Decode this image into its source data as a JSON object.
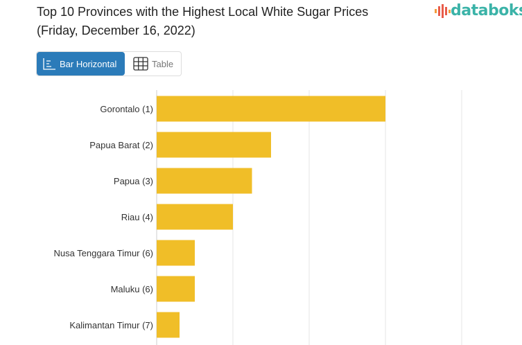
{
  "title_line1": "Top 10 Provinces with the Highest Local White Sugar Prices",
  "title_line2": "(Friday, December 16, 2022)",
  "logo": "databoks",
  "tabs": [
    {
      "label": "Bar Horizontal",
      "icon": "bar-chart-icon",
      "active": true
    },
    {
      "label": "Table",
      "icon": "table-grid-icon",
      "active": false
    }
  ],
  "chart_data": {
    "type": "bar",
    "orientation": "horizontal",
    "categories": [
      "Gorontalo (1)",
      "Papua Barat (2)",
      "Papua (3)",
      "Riau (4)",
      "Nusa Tenggara Timur (6)",
      "Maluku (6)",
      "Kalimantan Timur (7)"
    ],
    "values": [
      3,
      1.5,
      1.25,
      1,
      0.5,
      0.5,
      0.3
    ],
    "value_units": "relative (no axis tick labels shown)",
    "xlim": [
      0,
      4
    ],
    "grid": true,
    "bar_color": "#f0be28"
  }
}
